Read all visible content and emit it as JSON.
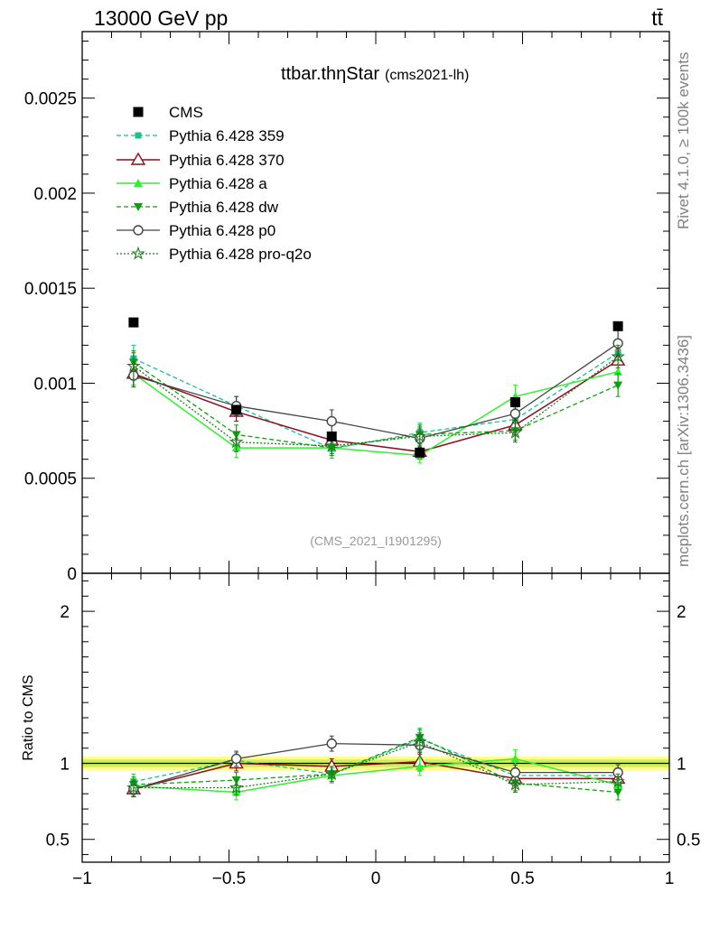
{
  "header": {
    "left": "13000 GeV pp",
    "right": "tt̄"
  },
  "side": {
    "top": "Rivet 4.1.0, ≥ 100k events",
    "bottom": "mcplots.cern.ch [arXiv:1306.3436]"
  },
  "colors": {
    "cms": "#000000",
    "p359": "#1fbf8f",
    "p370": "#8b0f1e",
    "pa": "#33ee33",
    "pdw": "#0fa00f",
    "pp0": "#444444",
    "pq2o": "#227a22",
    "band_outer": "#ffff88",
    "band_inner": "#cfee66"
  },
  "chart_data": [
    {
      "type": "line",
      "title": "ttbar.thηStar",
      "subtitle": "(cms2021-lh)",
      "watermark": "(CMS_2021_I1901295)",
      "x": [
        -0.825,
        -0.475,
        -0.15,
        0.15,
        0.475,
        0.825
      ],
      "xlim": [
        -1.0,
        1.0
      ],
      "ylim": [
        0,
        0.00285
      ],
      "yticks": [
        0,
        0.0005,
        0.001,
        0.0015,
        0.002,
        0.0025
      ],
      "ytick_labels": [
        "0",
        "0.0005",
        "0.001",
        "0.0015",
        "0.002",
        "0.0025"
      ],
      "legend_position": "top-left",
      "series": [
        {
          "key": "cms",
          "name": "CMS",
          "values": [
            0.00132,
            0.00086,
            0.00072,
            0.000635,
            0.0009,
            0.0013
          ],
          "errors": [
            2e-05,
            1e-05,
            1e-05,
            1e-05,
            1e-05,
            2e-05
          ]
        },
        {
          "key": "p359",
          "name": "Pythia 6.428 359",
          "values": [
            0.00113,
            0.00088,
            0.000655,
            0.00074,
            0.00081,
            0.00116
          ],
          "errors": [
            7e-05,
            5e-05,
            5e-05,
            5e-05,
            5e-05,
            6e-05
          ]
        },
        {
          "key": "p370",
          "name": "Pythia 6.428 370",
          "values": [
            0.00105,
            0.00085,
            0.0007,
            0.00064,
            0.00078,
            0.00112
          ],
          "errors": [
            6e-05,
            5e-05,
            4e-05,
            4e-05,
            5e-05,
            6e-05
          ]
        },
        {
          "key": "pa",
          "name": "Pythia 6.428 a",
          "values": [
            0.00105,
            0.00066,
            0.00066,
            0.00062,
            0.00093,
            0.00106
          ],
          "errors": [
            6e-05,
            5e-05,
            4e-05,
            4e-05,
            6e-05,
            6e-05
          ]
        },
        {
          "key": "pdw",
          "name": "Pythia 6.428 dw",
          "values": [
            0.00111,
            0.00073,
            0.00066,
            0.00073,
            0.00075,
            0.00099
          ],
          "errors": [
            6e-05,
            5e-05,
            4e-05,
            5e-05,
            5e-05,
            6e-05
          ]
        },
        {
          "key": "pp0",
          "name": "Pythia 6.428 p0",
          "values": [
            0.00104,
            0.00088,
            0.0008,
            0.00071,
            0.00084,
            0.00121
          ],
          "errors": [
            6e-05,
            5e-05,
            6e-05,
            5e-05,
            5e-05,
            7e-05
          ]
        },
        {
          "key": "pq2o",
          "name": "Pythia 6.428 pro-q2o",
          "values": [
            0.00109,
            0.00069,
            0.00067,
            0.00072,
            0.00074,
            0.00114
          ],
          "errors": [
            7e-05,
            5e-05,
            4e-05,
            5e-05,
            5e-05,
            6e-05
          ]
        }
      ]
    },
    {
      "type": "line",
      "ylabel": "Ratio to CMS",
      "x": [
        -0.825,
        -0.475,
        -0.15,
        0.15,
        0.475,
        0.825
      ],
      "xlim": [
        -1.0,
        1.0
      ],
      "ylim": [
        0.35,
        2.25
      ],
      "yticks": [
        0.5,
        1,
        2
      ],
      "ytick_labels": [
        "0.5",
        "1",
        "2"
      ],
      "xticks": [
        -1,
        -0.5,
        0,
        0.5,
        1
      ],
      "xtick_labels": [
        "−1",
        "−0.5",
        "0",
        "0.5",
        "1"
      ],
      "band": {
        "outer": [
          0.955,
          1.045
        ],
        "inner": [
          0.975,
          1.025
        ]
      },
      "series": [
        {
          "key": "p359",
          "values": [
            0.88,
            1.02,
            0.93,
            1.16,
            0.92,
            0.92
          ],
          "errors": [
            0.05,
            0.05,
            0.05,
            0.06,
            0.05,
            0.05
          ]
        },
        {
          "key": "p370",
          "values": [
            0.83,
            1.0,
            0.98,
            1.01,
            0.9,
            0.9
          ],
          "errors": [
            0.05,
            0.05,
            0.05,
            0.06,
            0.05,
            0.05
          ]
        },
        {
          "key": "pa",
          "values": [
            0.85,
            0.81,
            0.92,
            0.98,
            1.03,
            0.86
          ],
          "errors": [
            0.05,
            0.05,
            0.05,
            0.06,
            0.06,
            0.05
          ]
        },
        {
          "key": "pdw",
          "values": [
            0.86,
            0.89,
            0.93,
            1.17,
            0.87,
            0.81
          ],
          "errors": [
            0.05,
            0.05,
            0.05,
            0.06,
            0.05,
            0.05
          ]
        },
        {
          "key": "pp0",
          "values": [
            0.83,
            1.03,
            1.13,
            1.12,
            0.94,
            0.94
          ],
          "errors": [
            0.05,
            0.05,
            0.05,
            0.06,
            0.05,
            0.05
          ]
        },
        {
          "key": "pq2o",
          "values": [
            0.84,
            0.84,
            0.93,
            1.14,
            0.86,
            0.88
          ],
          "errors": [
            0.05,
            0.05,
            0.05,
            0.06,
            0.05,
            0.05
          ]
        }
      ]
    }
  ]
}
